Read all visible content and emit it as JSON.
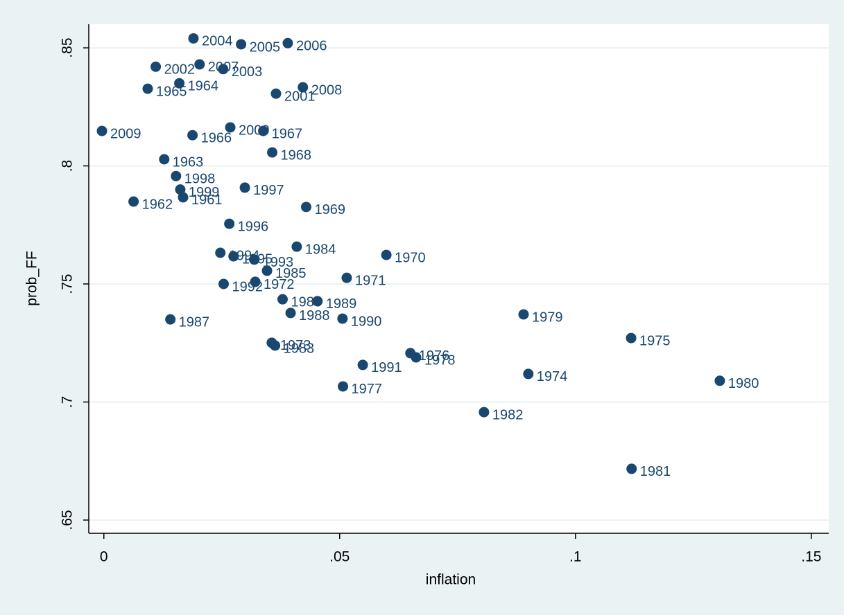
{
  "chart_data": {
    "type": "scatter",
    "x_label": "inflation",
    "y_label": "prob_FF",
    "color": "#1a476f",
    "grid": true,
    "xlim": [
      -0.0032,
      0.1537
    ],
    "ylim": [
      0.6444,
      0.86
    ],
    "xticks": [
      0,
      {
        "value": 0.05,
        "label": ".05"
      },
      {
        "value": 0.1,
        "label": ".1"
      },
      {
        "value": 0.15,
        "label": ".15"
      }
    ],
    "yticks": [
      {
        "value": 0.65,
        "label": ".65"
      },
      {
        "value": 0.7,
        "label": ".7"
      },
      {
        "value": 0.75,
        "label": ".75"
      },
      {
        "value": 0.8,
        "label": ".8"
      },
      {
        "value": 0.85,
        "label": ".85"
      }
    ],
    "point_labels": [
      "2004",
      "2005",
      "2006",
      "2002",
      "2007",
      "2003",
      "1964",
      "1965",
      "2001",
      "2008",
      "2009",
      "2000",
      "1967",
      "1966",
      "1968",
      "1963",
      "1998",
      "1999",
      "1997",
      "1961",
      "1962",
      "1969",
      "1996",
      "1994",
      "1995",
      "1993",
      "1984",
      "1970",
      "1985",
      "1971",
      "1992",
      "1972",
      "1986",
      "1989",
      "1988",
      "1990",
      "1987",
      "1979",
      "1973",
      "1983",
      "1976",
      "1978",
      "1975",
      "1991",
      "1974",
      "1977",
      "1980",
      "1982",
      "1981"
    ],
    "x": [
      0.019,
      0.0291,
      0.039,
      0.011,
      0.0203,
      0.0253,
      0.016,
      0.0093,
      0.0365,
      0.0422,
      -0.0004,
      0.0268,
      0.0338,
      0.0188,
      0.0357,
      0.0128,
      0.0153,
      0.0162,
      0.0299,
      0.0168,
      0.0063,
      0.0429,
      0.0266,
      0.0247,
      0.0275,
      0.0319,
      0.0409,
      0.0599,
      0.0346,
      0.0515,
      0.0254,
      0.0321,
      0.0379,
      0.0453,
      0.0396,
      0.0506,
      0.0141,
      0.089,
      0.0356,
      0.0363,
      0.065,
      0.0662,
      0.1118,
      0.0549,
      0.09,
      0.0507,
      0.1306,
      0.0806,
      0.1119
    ],
    "values": [
      0.854,
      0.8515,
      0.852,
      0.842,
      0.843,
      0.841,
      0.835,
      0.8327,
      0.8306,
      0.8333,
      0.8148,
      0.8163,
      0.8148,
      0.813,
      0.8057,
      0.8028,
      0.7957,
      0.79,
      0.7908,
      0.7867,
      0.7849,
      0.7826,
      0.7755,
      0.7632,
      0.7617,
      0.7603,
      0.7658,
      0.7623,
      0.7556,
      0.7526,
      0.75,
      0.7509,
      0.7435,
      0.7427,
      0.7377,
      0.7353,
      0.735,
      0.7371,
      0.7251,
      0.7239,
      0.7207,
      0.7189,
      0.7271,
      0.7157,
      0.7119,
      0.7066,
      0.709,
      0.6957,
      0.6717
    ]
  }
}
